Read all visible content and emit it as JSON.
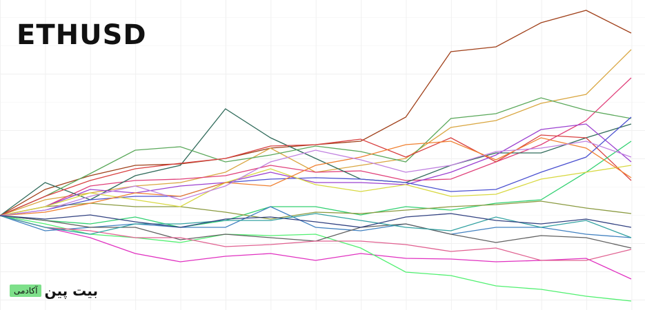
{
  "chart_data": {
    "type": "line",
    "title": "ETHUSD",
    "x": [
      0,
      1,
      2,
      3,
      4,
      5,
      6,
      7,
      8,
      9,
      10,
      11,
      12,
      13,
      14
    ],
    "xlim": [
      0,
      14
    ],
    "ylim": [
      -137,
      313
    ],
    "series": [
      {
        "color": "#a0401a",
        "values": [
          0,
          38,
          58,
          73,
          75,
          83,
          98,
          103,
          108,
          143,
          238,
          245,
          280,
          298,
          265
        ]
      },
      {
        "color": "#d9a640",
        "values": [
          0,
          23,
          33,
          43,
          48,
          63,
          98,
          63,
          73,
          83,
          128,
          138,
          163,
          176,
          241
        ]
      },
      {
        "color": "#e0407a",
        "values": [
          0,
          13,
          43,
          51,
          53,
          58,
          73,
          63,
          65,
          51,
          53,
          78,
          103,
          138,
          200
        ]
      },
      {
        "color": "#2f6a5a",
        "values": [
          0,
          48,
          23,
          58,
          73,
          155,
          113,
          83,
          53,
          48,
          73,
          91,
          91,
          113,
          133
        ]
      },
      {
        "color": "#5aa85a",
        "values": [
          0,
          28,
          61,
          95,
          100,
          78,
          88,
          101,
          93,
          78,
          141,
          148,
          171,
          153,
          141
        ]
      },
      {
        "color": "#d84040",
        "values": [
          0,
          28,
          51,
          68,
          76,
          83,
          101,
          103,
          111,
          85,
          113,
          78,
          117,
          113,
          51
        ]
      },
      {
        "color": "#9b40d0",
        "values": [
          0,
          13,
          38,
          33,
          43,
          48,
          63,
          48,
          48,
          45,
          63,
          88,
          125,
          133,
          78
        ]
      },
      {
        "color": "#30d070",
        "values": [
          0,
          -7,
          -12,
          -2,
          -17,
          -7,
          13,
          13,
          1,
          13,
          8,
          18,
          23,
          63,
          108
        ]
      },
      {
        "color": "#e030c0",
        "values": [
          0,
          -17,
          -32,
          -55,
          -67,
          -59,
          -55,
          -65,
          -55,
          -62,
          -63,
          -67,
          -65,
          -62,
          -92
        ]
      },
      {
        "color": "#50f070",
        "values": [
          0,
          -12,
          -27,
          -32,
          -39,
          -27,
          -29,
          -27,
          -47,
          -82,
          -87,
          -102,
          -107,
          -117,
          -124
        ]
      },
      {
        "color": "#8a9a40",
        "values": [
          0,
          13,
          18,
          13,
          13,
          5,
          -5,
          5,
          3,
          8,
          13,
          16,
          21,
          11,
          3
        ]
      },
      {
        "color": "#4080c0",
        "values": [
          0,
          -22,
          -17,
          -12,
          -17,
          -17,
          13,
          -17,
          -22,
          -12,
          -27,
          -17,
          -17,
          -27,
          -32
        ]
      },
      {
        "color": "#606060",
        "values": [
          0,
          -7,
          -17,
          -17,
          -35,
          -27,
          -32,
          -37,
          -17,
          -12,
          -27,
          -39,
          -29,
          -32,
          -47
        ]
      },
      {
        "color": "#e06090",
        "values": [
          0,
          -17,
          -22,
          -32,
          -32,
          -45,
          -42,
          -37,
          -37,
          -42,
          -52,
          -47,
          -65,
          -65,
          -49
        ]
      },
      {
        "color": "#4a50d0",
        "values": [
          0,
          8,
          23,
          28,
          28,
          48,
          53,
          55,
          53,
          48,
          35,
          38,
          63,
          85,
          143
        ]
      },
      {
        "color": "#d8d840",
        "values": [
          0,
          13,
          33,
          23,
          13,
          48,
          68,
          45,
          35,
          45,
          28,
          31,
          53,
          63,
          73
        ]
      },
      {
        "color": "#30a0a0",
        "values": [
          0,
          -17,
          -27,
          -12,
          -12,
          -7,
          -7,
          3,
          -7,
          -17,
          -22,
          -2,
          -17,
          -7,
          -32
        ]
      },
      {
        "color": "#f08030",
        "values": [
          0,
          5,
          18,
          33,
          28,
          48,
          43,
          73,
          85,
          103,
          108,
          81,
          113,
          98,
          55
        ]
      },
      {
        "color": "#c080e0",
        "values": [
          0,
          8,
          28,
          43,
          23,
          43,
          78,
          95,
          81,
          63,
          73,
          93,
          98,
          108,
          85
        ]
      },
      {
        "color": "#304080",
        "values": [
          0,
          -5,
          1,
          -9,
          -17,
          -5,
          -2,
          -9,
          -17,
          -2,
          3,
          -7,
          -12,
          -5,
          -17
        ]
      }
    ]
  },
  "brand": {
    "name": "بیت پین",
    "tag": "آکادمی"
  }
}
